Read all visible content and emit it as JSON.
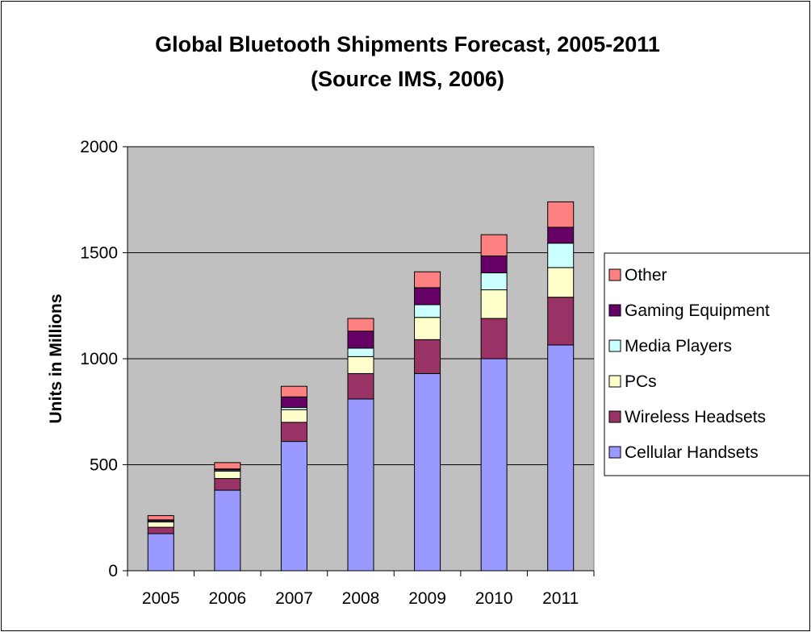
{
  "chart_data": {
    "type": "bar",
    "stacked": true,
    "title": "Global Bluetooth Shipments Forecast, 2005-2011",
    "subtitle": "(Source IMS, 2006)",
    "xlabel": "",
    "ylabel": "Units in Millions",
    "ylim": [
      0,
      2000
    ],
    "yticks": [
      0,
      500,
      1000,
      1500,
      2000
    ],
    "grid": true,
    "legend_position": "right",
    "plot_background": "#c0c0c0",
    "categories": [
      "2005",
      "2006",
      "2007",
      "2008",
      "2009",
      "2010",
      "2011"
    ],
    "series": [
      {
        "name": "Cellular Handsets",
        "color": "#9999ff",
        "values": [
          175,
          380,
          610,
          810,
          930,
          1000,
          1065
        ]
      },
      {
        "name": "Wireless Headsets",
        "color": "#993366",
        "values": [
          30,
          55,
          90,
          120,
          160,
          190,
          225
        ]
      },
      {
        "name": "PCs",
        "color": "#ffffcc",
        "values": [
          25,
          35,
          60,
          80,
          105,
          135,
          140
        ]
      },
      {
        "name": "Media Players",
        "color": "#ccffff",
        "values": [
          5,
          5,
          10,
          40,
          60,
          80,
          115
        ]
      },
      {
        "name": "Gaming Equipment",
        "color": "#660066",
        "values": [
          5,
          5,
          50,
          80,
          80,
          80,
          75
        ]
      },
      {
        "name": "Other",
        "color": "#ff8080",
        "values": [
          20,
          30,
          50,
          60,
          75,
          100,
          120
        ]
      }
    ]
  }
}
